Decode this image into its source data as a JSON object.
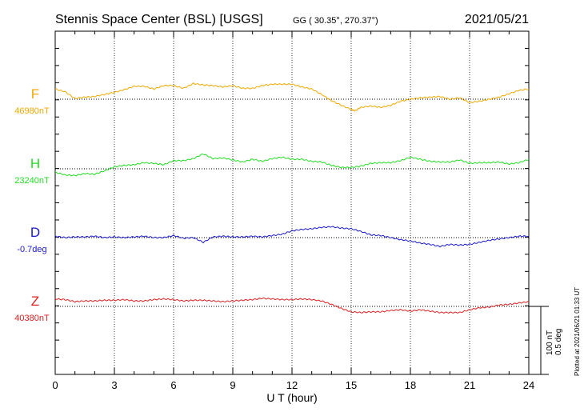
{
  "header": {
    "station": "Stennis Space Center (BSL)  [USGS]",
    "coords": "GG ( 30.35°, 270.37°)",
    "date": "2021/05/21"
  },
  "side_note": "Plotted at 2021/06/21 01:33 UT",
  "scale_bar": {
    "label_nt": "100 nT",
    "label_deg": "0.5 deg"
  },
  "chart_data": {
    "type": "line",
    "title": "Stennis Space Center (BSL)  [USGS]",
    "xlabel": "U T (hour)",
    "xlim": [
      0,
      24
    ],
    "xticks": [
      "0",
      "3",
      "6",
      "9",
      "12",
      "15",
      "18",
      "21",
      "24"
    ],
    "grid": true,
    "series": [
      {
        "name": "F",
        "baseline_label": "46980nT",
        "color": "#f0a800",
        "unit_scale_nt": 100,
        "x": [
          0,
          0.5,
          1,
          1.5,
          2,
          2.5,
          3,
          3.5,
          4,
          4.5,
          5,
          5.5,
          6,
          6.5,
          7,
          7.5,
          8,
          8.5,
          9,
          9.5,
          10,
          10.5,
          11,
          11.5,
          12,
          12.5,
          13,
          13.5,
          14,
          14.5,
          15,
          15.2,
          15.5,
          16,
          16.5,
          17,
          17.5,
          18,
          18.5,
          19,
          19.5,
          20,
          20.5,
          21,
          21.5,
          22,
          22.5,
          23,
          23.5,
          24
        ],
        "y": [
          15,
          11,
          1,
          3,
          4,
          7,
          10,
          14,
          19,
          19,
          15,
          20,
          20,
          16,
          23,
          21,
          20,
          18,
          20,
          16,
          16,
          20,
          22,
          22,
          22,
          18,
          15,
          7,
          -2,
          -9,
          -15,
          -17,
          -12,
          -10,
          -12,
          -9,
          -3,
          0,
          2,
          3,
          4,
          0,
          2,
          -5,
          -3,
          0,
          3,
          8,
          13,
          15
        ]
      },
      {
        "name": "H",
        "baseline_label": "23240nT",
        "color": "#22dd22",
        "unit_scale_nt": 100,
        "x": [
          0,
          0.5,
          1,
          1.5,
          2,
          2.5,
          3,
          3.5,
          4,
          4.5,
          5,
          5.5,
          6,
          6.5,
          7,
          7.5,
          8,
          8.5,
          9,
          9.5,
          10,
          10.5,
          11,
          11.5,
          12,
          12.5,
          13,
          13.5,
          14,
          14.5,
          15,
          15.5,
          16,
          16.5,
          17,
          17.5,
          18,
          18.5,
          19,
          19.5,
          20,
          20.5,
          21,
          21.5,
          22,
          22.5,
          23,
          23.5,
          24
        ],
        "y": [
          -5,
          -9,
          -10,
          -7,
          -8,
          -3,
          3,
          5,
          6,
          9,
          8,
          6,
          12,
          12,
          15,
          22,
          15,
          16,
          13,
          10,
          14,
          11,
          15,
          17,
          14,
          14,
          11,
          10,
          5,
          2,
          2,
          4,
          8,
          9,
          9,
          12,
          17,
          14,
          11,
          10,
          10,
          13,
          8,
          9,
          9,
          10,
          7,
          9,
          14
        ]
      },
      {
        "name": "D",
        "baseline_label": "-0.7deg",
        "color": "#1a1acc",
        "unit_scale_deg": 0.5,
        "x": [
          0,
          0.5,
          1,
          1.5,
          2,
          2.5,
          3,
          3.5,
          4,
          4.5,
          5,
          5.5,
          6,
          6.5,
          7,
          7.5,
          8,
          8.5,
          9,
          9.5,
          10,
          10.5,
          11,
          11.5,
          12,
          12.5,
          13,
          13.5,
          14,
          14.5,
          15,
          15.5,
          16,
          16.5,
          17,
          17.5,
          18,
          18.5,
          19,
          19.5,
          20,
          20.5,
          21,
          21.5,
          22,
          22.5,
          23,
          23.5,
          24
        ],
        "y": [
          2,
          0,
          1,
          1,
          2,
          0,
          1,
          0,
          1,
          2,
          0,
          0,
          3,
          -1,
          0,
          -7,
          1,
          2,
          1,
          1,
          2,
          1,
          3,
          5,
          10,
          12,
          13,
          15,
          16,
          14,
          13,
          9,
          4,
          3,
          0,
          -3,
          -5,
          -8,
          -10,
          -13,
          -10,
          -11,
          -10,
          -7,
          -4,
          -2,
          0,
          2,
          2
        ]
      },
      {
        "name": "Z",
        "baseline_label": "40380nT",
        "color": "#dd2222",
        "unit_scale_nt": 100,
        "x": [
          0,
          0.5,
          1,
          1.5,
          2,
          2.5,
          3,
          3.5,
          4,
          4.5,
          5,
          5.5,
          6,
          6.5,
          7,
          7.5,
          8,
          8.5,
          9,
          9.5,
          10,
          10.5,
          11,
          11.5,
          12,
          12.5,
          13,
          13.5,
          14,
          14.5,
          15,
          15.5,
          16,
          16.5,
          17,
          17.5,
          18,
          18.5,
          19,
          19.5,
          20,
          20.5,
          21,
          21.5,
          22,
          22.5,
          23,
          23.5,
          24
        ],
        "y": [
          11,
          10,
          7,
          8,
          8,
          9,
          9,
          10,
          8,
          8,
          10,
          11,
          10,
          8,
          9,
          9,
          8,
          7,
          8,
          9,
          10,
          12,
          11,
          10,
          10,
          11,
          10,
          8,
          3,
          -3,
          -8,
          -9,
          -8,
          -8,
          -6,
          -5,
          -7,
          -5,
          -7,
          -9,
          -9,
          -9,
          -5,
          -2,
          -1,
          2,
          3,
          5,
          7
        ]
      }
    ]
  }
}
